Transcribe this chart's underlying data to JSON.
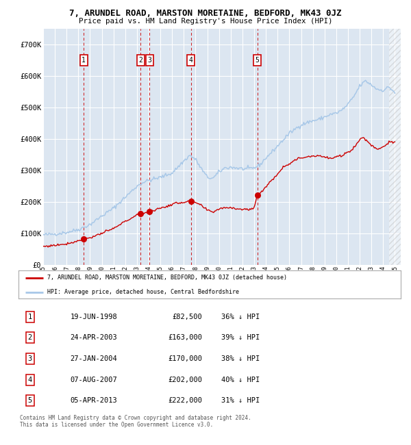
{
  "title": "7, ARUNDEL ROAD, MARSTON MORETAINE, BEDFORD, MK43 0JZ",
  "subtitle": "Price paid vs. HM Land Registry's House Price Index (HPI)",
  "background_color": "#dce6f1",
  "fig_bg_color": "#ffffff",
  "hpi_color": "#a8c8e8",
  "price_color": "#cc0000",
  "grid_color": "#ffffff",
  "ylim": [
    0,
    750000
  ],
  "yticks": [
    0,
    100000,
    200000,
    300000,
    400000,
    500000,
    600000,
    700000
  ],
  "ytick_labels": [
    "£0",
    "£100K",
    "£200K",
    "£300K",
    "£400K",
    "£500K",
    "£600K",
    "£700K"
  ],
  "xlim_start": 1995,
  "xlim_end": 2025.5,
  "transactions": [
    {
      "num": 1,
      "price": 82500,
      "x_year": 1998.46
    },
    {
      "num": 2,
      "price": 163000,
      "x_year": 2003.31
    },
    {
      "num": 3,
      "price": 170000,
      "x_year": 2004.07
    },
    {
      "num": 4,
      "price": 202000,
      "x_year": 2007.6
    },
    {
      "num": 5,
      "price": 222000,
      "x_year": 2013.26
    }
  ],
  "legend_address": "7, ARUNDEL ROAD, MARSTON MORETAINE, BEDFORD, MK43 0JZ (detached house)",
  "legend_hpi": "HPI: Average price, detached house, Central Bedfordshire",
  "footer": "Contains HM Land Registry data © Crown copyright and database right 2024.\nThis data is licensed under the Open Government Licence v3.0.",
  "table_rows": [
    {
      "num": 1,
      "date": "19-JUN-1998",
      "price": "£82,500",
      "pct": "36% ↓ HPI"
    },
    {
      "num": 2,
      "date": "24-APR-2003",
      "price": "£163,000",
      "pct": "39% ↓ HPI"
    },
    {
      "num": 3,
      "date": "27-JAN-2004",
      "price": "£170,000",
      "pct": "38% ↓ HPI"
    },
    {
      "num": 4,
      "date": "07-AUG-2007",
      "price": "£202,000",
      "pct": "40% ↓ HPI"
    },
    {
      "num": 5,
      "date": "05-APR-2013",
      "price": "£222,000",
      "pct": "31% ↓ HPI"
    }
  ],
  "hpi_keypoints": [
    [
      1995.0,
      95000
    ],
    [
      1996.0,
      98000
    ],
    [
      1997.0,
      103000
    ],
    [
      1998.0,
      112000
    ],
    [
      1999.0,
      128000
    ],
    [
      2000.0,
      155000
    ],
    [
      2001.0,
      180000
    ],
    [
      2002.0,
      215000
    ],
    [
      2003.0,
      250000
    ],
    [
      2003.5,
      262000
    ],
    [
      2004.0,
      268000
    ],
    [
      2005.0,
      278000
    ],
    [
      2006.0,
      292000
    ],
    [
      2007.0,
      330000
    ],
    [
      2007.5,
      348000
    ],
    [
      2008.0,
      335000
    ],
    [
      2008.5,
      305000
    ],
    [
      2009.0,
      278000
    ],
    [
      2009.5,
      275000
    ],
    [
      2010.0,
      295000
    ],
    [
      2010.5,
      308000
    ],
    [
      2011.0,
      310000
    ],
    [
      2011.5,
      308000
    ],
    [
      2012.0,
      305000
    ],
    [
      2012.5,
      305000
    ],
    [
      2013.0,
      308000
    ],
    [
      2013.5,
      318000
    ],
    [
      2014.0,
      340000
    ],
    [
      2014.5,
      358000
    ],
    [
      2015.0,
      378000
    ],
    [
      2015.5,
      398000
    ],
    [
      2016.0,
      418000
    ],
    [
      2016.5,
      432000
    ],
    [
      2017.0,
      445000
    ],
    [
      2017.5,
      452000
    ],
    [
      2018.0,
      458000
    ],
    [
      2018.5,
      462000
    ],
    [
      2019.0,
      470000
    ],
    [
      2019.5,
      478000
    ],
    [
      2020.0,
      482000
    ],
    [
      2020.5,
      492000
    ],
    [
      2021.0,
      510000
    ],
    [
      2021.5,
      535000
    ],
    [
      2022.0,
      568000
    ],
    [
      2022.5,
      585000
    ],
    [
      2023.0,
      572000
    ],
    [
      2023.5,
      558000
    ],
    [
      2024.0,
      555000
    ],
    [
      2024.5,
      565000
    ],
    [
      2025.0,
      548000
    ]
  ],
  "price_keypoints": [
    [
      1995.0,
      58000
    ],
    [
      1996.0,
      62000
    ],
    [
      1997.0,
      67000
    ],
    [
      1998.0,
      76000
    ],
    [
      1998.46,
      82500
    ],
    [
      1999.0,
      86000
    ],
    [
      2000.0,
      100000
    ],
    [
      2001.0,
      115000
    ],
    [
      2002.0,
      138000
    ],
    [
      2002.5,
      148000
    ],
    [
      2003.0,
      158000
    ],
    [
      2003.31,
      163000
    ],
    [
      2003.6,
      165000
    ],
    [
      2004.07,
      170000
    ],
    [
      2004.5,
      174000
    ],
    [
      2005.0,
      180000
    ],
    [
      2005.5,
      185000
    ],
    [
      2006.0,
      192000
    ],
    [
      2006.5,
      197000
    ],
    [
      2007.0,
      199000
    ],
    [
      2007.6,
      202000
    ],
    [
      2008.0,
      198000
    ],
    [
      2008.5,
      188000
    ],
    [
      2009.0,
      173000
    ],
    [
      2009.5,
      168000
    ],
    [
      2010.0,
      178000
    ],
    [
      2010.5,
      182000
    ],
    [
      2011.0,
      182000
    ],
    [
      2011.5,
      179000
    ],
    [
      2012.0,
      176000
    ],
    [
      2012.5,
      176000
    ],
    [
      2013.0,
      180000
    ],
    [
      2013.26,
      222000
    ],
    [
      2013.5,
      228000
    ],
    [
      2014.0,
      248000
    ],
    [
      2014.5,
      268000
    ],
    [
      2015.0,
      290000
    ],
    [
      2015.5,
      312000
    ],
    [
      2016.0,
      322000
    ],
    [
      2016.5,
      333000
    ],
    [
      2017.0,
      340000
    ],
    [
      2017.5,
      344000
    ],
    [
      2018.0,
      346000
    ],
    [
      2018.5,
      348000
    ],
    [
      2019.0,
      342000
    ],
    [
      2019.5,
      338000
    ],
    [
      2020.0,
      342000
    ],
    [
      2020.5,
      348000
    ],
    [
      2021.0,
      358000
    ],
    [
      2021.5,
      372000
    ],
    [
      2022.0,
      398000
    ],
    [
      2022.3,
      405000
    ],
    [
      2022.6,
      395000
    ],
    [
      2023.0,
      380000
    ],
    [
      2023.5,
      368000
    ],
    [
      2024.0,
      375000
    ],
    [
      2024.5,
      390000
    ],
    [
      2025.0,
      388000
    ]
  ]
}
